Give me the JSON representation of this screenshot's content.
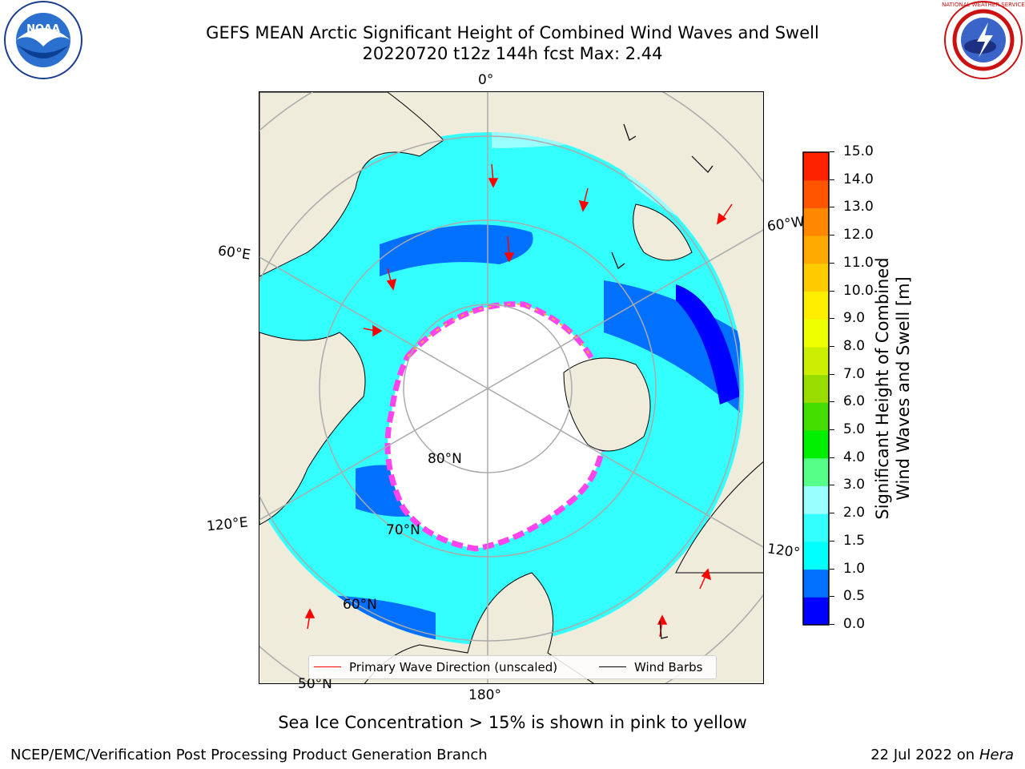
{
  "title": {
    "line1": "GEFS MEAN Arctic Significant Height of Combined Wind Waves and Swell",
    "line2": "20220720 t12z 144h fcst   Max: 2.44"
  },
  "logos": {
    "left": "NOAA",
    "right": "NATIONAL WEATHER SERVICE"
  },
  "map": {
    "projection": "north polar stereographic",
    "longitude_labels": [
      "0°",
      "60°E",
      "120°E",
      "180°",
      "120°",
      "60°W"
    ],
    "latitude_labels": [
      "80°N",
      "70°N",
      "60°N",
      "50°N"
    ],
    "ocean_wave_color": "#33ffff",
    "land_color": "#efecdc",
    "ice_color": "#ffffff",
    "ice_edge_color": "#ff44ee"
  },
  "legend": {
    "primary_wave": {
      "label": "Primary Wave Direction (unscaled)",
      "color": "#ff0000"
    },
    "wind_barbs": {
      "label": "Wind Barbs",
      "color": "#000000"
    }
  },
  "colorbar": {
    "label_line1": "Significant Height of Combined",
    "label_line2": "Wind Waves and Swell [m]",
    "ticks": [
      "0.0",
      "0.5",
      "1.0",
      "1.5",
      "2.0",
      "3.0",
      "4.0",
      "5.0",
      "6.0",
      "7.0",
      "8.0",
      "9.0",
      "10.0",
      "11.0",
      "12.0",
      "13.0",
      "14.0",
      "15.0"
    ],
    "colors": [
      "#0000ff",
      "#0070ff",
      "#00ffff",
      "#33ffff",
      "#99ffff",
      "#55ff88",
      "#00ee00",
      "#44dd00",
      "#99dd00",
      "#ccee00",
      "#eeff00",
      "#ffee00",
      "#ffcc00",
      "#ffaa00",
      "#ff8800",
      "#ff5500",
      "#ff2200"
    ]
  },
  "note": "Sea Ice Concentration > 15% is shown in pink to yellow",
  "footer": {
    "left": "NCEP/EMC/Verification Post Processing Product Generation Branch",
    "date": "22 Jul 2022 on",
    "host": "Hera"
  }
}
